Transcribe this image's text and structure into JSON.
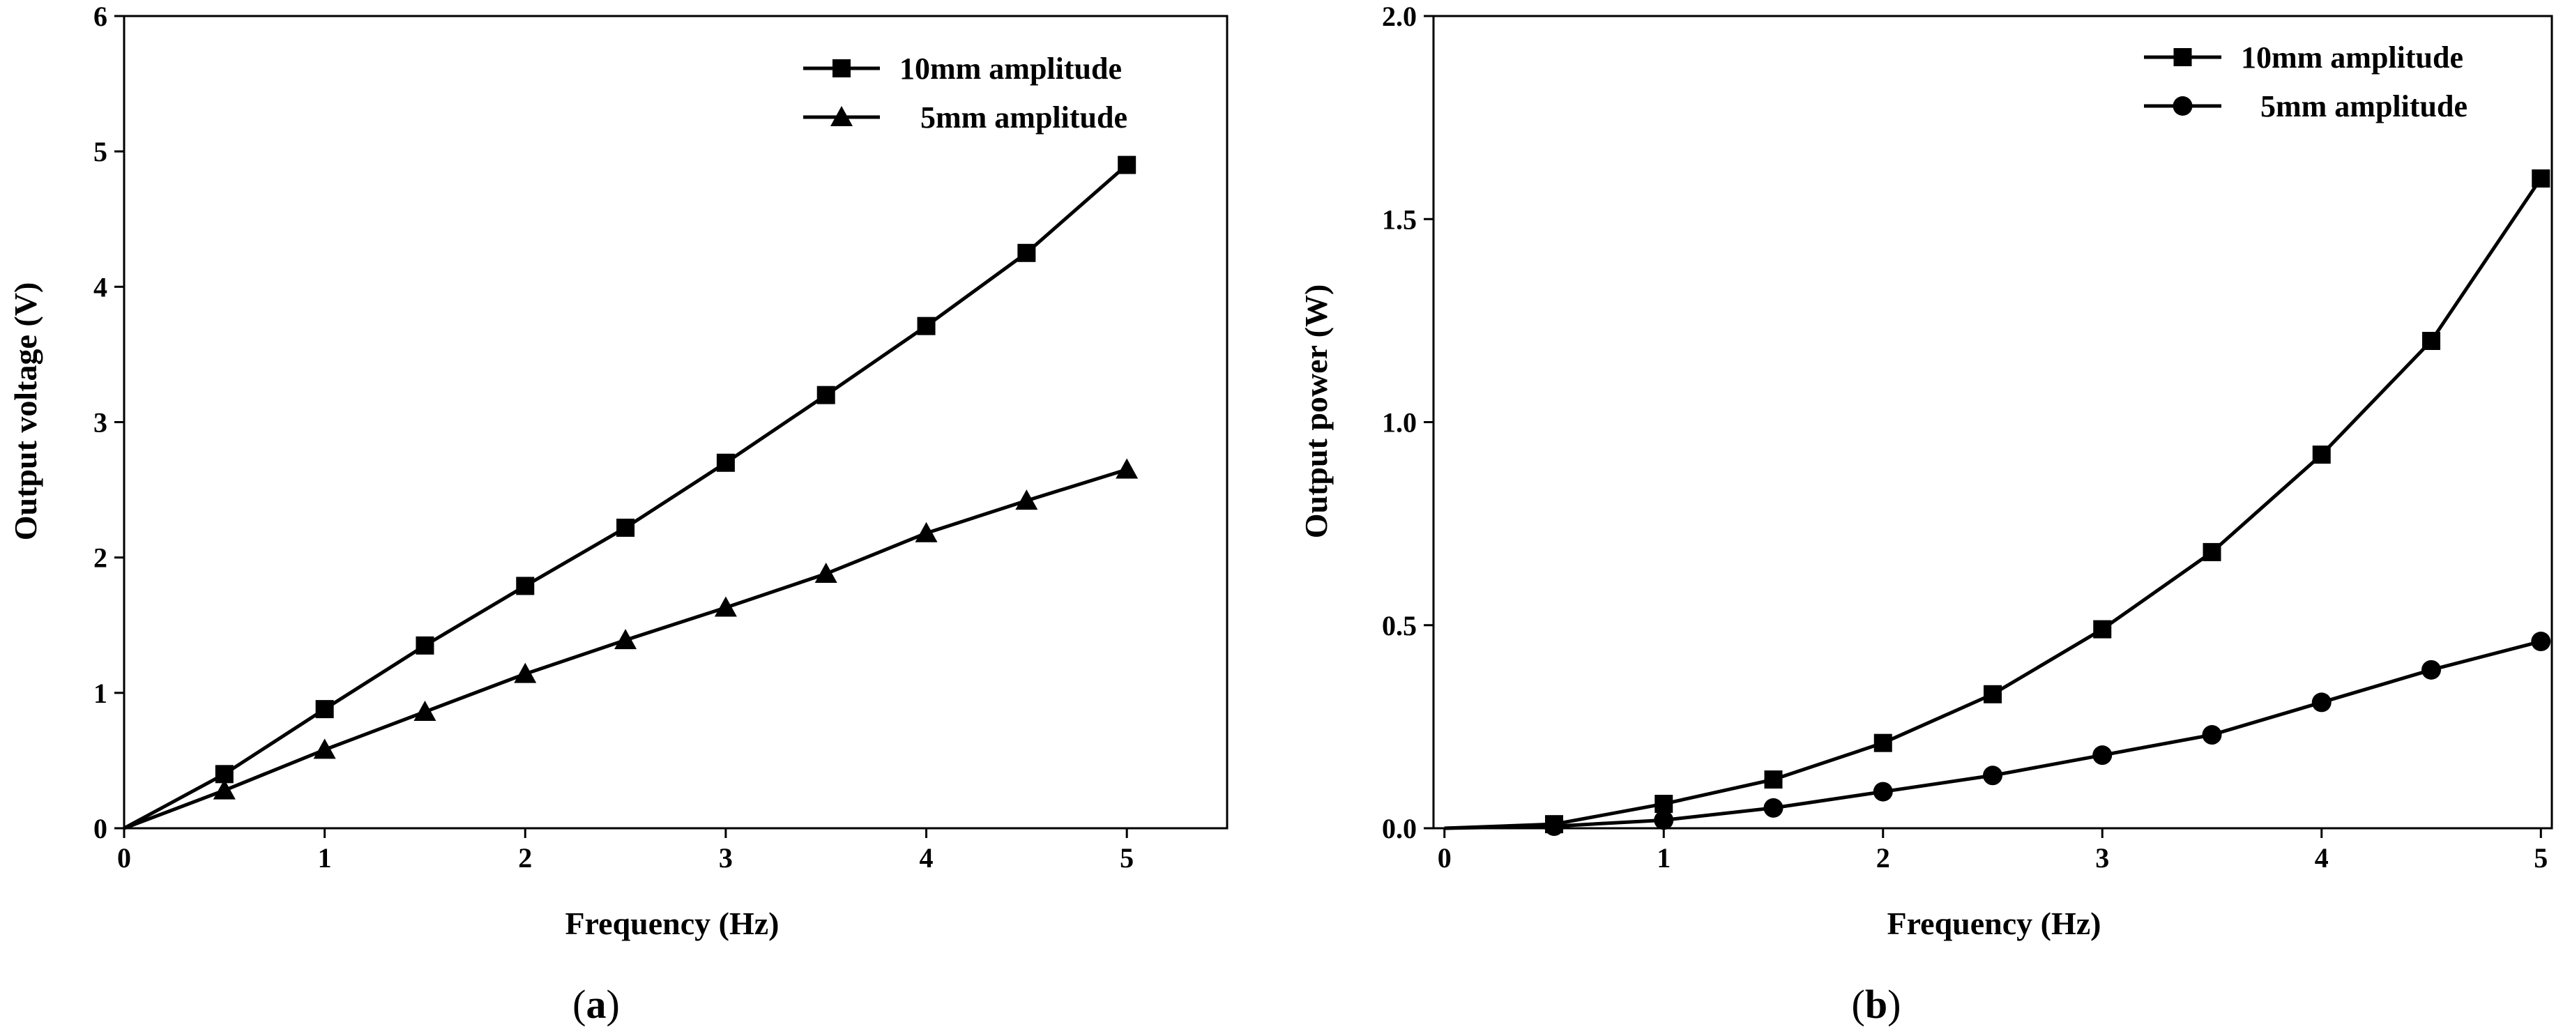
{
  "chart_data": [
    {
      "type": "line",
      "panel_label": "a",
      "title": "",
      "xlabel": "Frequency (Hz)",
      "ylabel": "Output voltage (V)",
      "xlim": [
        0,
        5.5
      ],
      "ylim": [
        0,
        6
      ],
      "xticks": [
        0,
        1,
        2,
        3,
        4,
        5
      ],
      "yticks": [
        0,
        1,
        2,
        3,
        4,
        5,
        6
      ],
      "xtick_labels": [
        "0",
        "1",
        "2",
        "3",
        "4",
        "5"
      ],
      "ytick_labels": [
        "0",
        "1",
        "2",
        "3",
        "4",
        "5",
        "6"
      ],
      "grid": false,
      "legend_position": "top-right",
      "series": [
        {
          "name": "10mm amplitude",
          "marker": "square",
          "x": [
            0,
            0.5,
            1,
            1.5,
            2,
            2.5,
            3,
            3.5,
            4,
            4.5,
            5
          ],
          "values": [
            0,
            0.4,
            0.88,
            1.35,
            1.79,
            2.22,
            2.7,
            3.2,
            3.71,
            4.25,
            4.9
          ]
        },
        {
          "name": "5mm amplitude",
          "marker": "triangle",
          "x": [
            0,
            0.5,
            1,
            1.5,
            2,
            2.5,
            3,
            3.5,
            4,
            4.5,
            5
          ],
          "values": [
            0,
            0.28,
            0.58,
            0.86,
            1.14,
            1.39,
            1.63,
            1.88,
            2.18,
            2.42,
            2.65
          ]
        }
      ]
    },
    {
      "type": "line",
      "panel_label": "b",
      "title": "",
      "xlabel": "Frequency (Hz)",
      "ylabel": "Output power (W)",
      "xlim": [
        -0.05,
        5.05
      ],
      "ylim": [
        0,
        2.0
      ],
      "xticks": [
        0,
        1,
        2,
        3,
        4,
        5
      ],
      "yticks": [
        0,
        0.5,
        1.0,
        1.5,
        2.0
      ],
      "xtick_labels": [
        "0",
        "1",
        "2",
        "3",
        "4",
        "5"
      ],
      "ytick_labels": [
        "0.0",
        "0.5",
        "1.0",
        "1.5",
        "2.0"
      ],
      "grid": false,
      "legend_position": "top-right",
      "series": [
        {
          "name": "10mm amplitude",
          "marker": "square",
          "x": [
            0,
            0.5,
            1,
            1.5,
            2,
            2.5,
            3,
            3.5,
            4,
            4.5,
            5
          ],
          "values": [
            0,
            0.01,
            0.06,
            0.12,
            0.21,
            0.33,
            0.49,
            0.68,
            0.92,
            1.2,
            1.6
          ]
        },
        {
          "name": "5mm amplitude",
          "marker": "circle",
          "x": [
            0,
            0.5,
            1,
            1.5,
            2,
            2.5,
            3,
            3.5,
            4,
            4.5,
            5
          ],
          "values": [
            0,
            0.005,
            0.02,
            0.05,
            0.09,
            0.13,
            0.18,
            0.23,
            0.31,
            0.39,
            0.46
          ]
        }
      ]
    }
  ],
  "captions": [
    {
      "open": "(",
      "letter": "a",
      "close": ")"
    },
    {
      "open": "(",
      "letter": "b",
      "close": ")"
    }
  ],
  "colors": {
    "line": "#000000",
    "background": "#ffffff"
  }
}
